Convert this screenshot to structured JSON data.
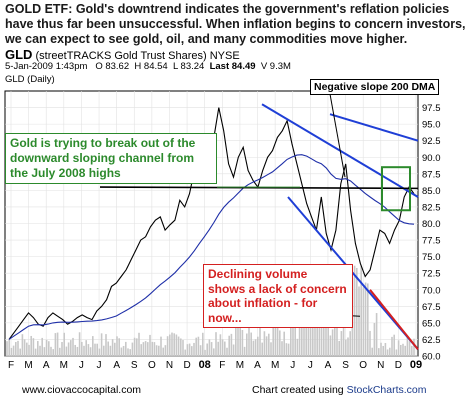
{
  "headline": {
    "text": "GOLD ETF:  Gold's downtrend indicates the government's reflation policies have thus far been unsuccessful.  When inflation begins to concern investors, we can expect to see gold, oil, and many commodities move higher."
  },
  "ticker": {
    "symbol": "GLD",
    "name": "(streetTRACKS Gold Trust Shares) NYSE",
    "date": "5-Jan-2009 1:43pm",
    "open": "O 83.62",
    "high": "H 84.54",
    "low": "L 83.24",
    "last": "Last 84.49",
    "volume": "V 9.3M",
    "chart_label": "GLD (Daily)"
  },
  "annotations": {
    "green_box": "Gold is trying to break out of the downward sloping channel from the July 2008 highs",
    "red_box": "Declining volume shows a lack of concern about inflation - for now...",
    "neg_slope": "Negative slope 200 DMA"
  },
  "footer": {
    "left": "www.ciovaccocapital.com",
    "right_prefix": "Chart created using ",
    "right_brand": "StockCharts.com"
  },
  "colors": {
    "price": "#000000",
    "ma": "#1f2fa8",
    "channel": "#1f3fd6",
    "volume": "#c8c8c8",
    "green": "#2c8a2c",
    "red": "#d42020"
  },
  "chart_data": {
    "type": "line",
    "title": "GLD (Daily)",
    "ylim": [
      60,
      100
    ],
    "y_ticks": [
      "97.5",
      "95.0",
      "92.5",
      "90.0",
      "87.5",
      "85.0",
      "82.5",
      "80.0",
      "77.5",
      "75.0",
      "72.5",
      "70.0",
      "67.5",
      "65.0",
      "62.5",
      "60.0"
    ],
    "x_ticks": [
      "F",
      "M",
      "A",
      "M",
      "J",
      "J",
      "A",
      "S",
      "O",
      "N",
      "D",
      "08",
      "F",
      "M",
      "A",
      "M",
      "J",
      "J",
      "A",
      "S",
      "O",
      "N",
      "D",
      "09"
    ],
    "series": [
      {
        "values": [
          62.5,
          63.5,
          64.5,
          65.5,
          66.5,
          65.8,
          64.8,
          64.5,
          65.8,
          66.5,
          66,
          65.5,
          64.8,
          65.2,
          65.8,
          66.2,
          65.8,
          65.5,
          66.8,
          67.5,
          68.5,
          70.5,
          71,
          72,
          73,
          74.5,
          76,
          77.5,
          78,
          79.5,
          80.5,
          81,
          79,
          79.8,
          80.5,
          83.5,
          82.5,
          84.5,
          88,
          90.5,
          89,
          91,
          93,
          97.5,
          94,
          89,
          87,
          90,
          91.5,
          88,
          86.5,
          85.5,
          88,
          90,
          91,
          93,
          94,
          95.5,
          92,
          89,
          86,
          83,
          81,
          79,
          84,
          78.5,
          76,
          79,
          86,
          89,
          82,
          77,
          74,
          72,
          73,
          76,
          79,
          78.5,
          77,
          79,
          80.5,
          84,
          85.5,
          84.5
        ]
      }
    ]
  }
}
